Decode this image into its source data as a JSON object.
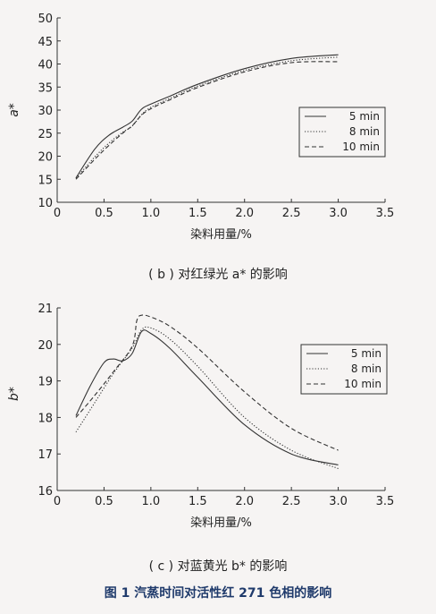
{
  "chart_data": [
    {
      "type": "line",
      "ylabel": "a*",
      "xlabel": "染料用量/%",
      "xlim": [
        0,
        3.5
      ],
      "ylim": [
        10,
        50
      ],
      "xticks": [
        "0",
        "0.5",
        "1.0",
        "1.5",
        "2.0",
        "2.5",
        "3.0",
        "3.5"
      ],
      "yticks": [
        "10",
        "15",
        "20",
        "25",
        "30",
        "35",
        "40",
        "45",
        "50"
      ],
      "legend_position": "right-middle",
      "series": [
        {
          "name": "5 min",
          "dash": "solid",
          "x": [
            0.2,
            0.4,
            0.55,
            0.7,
            0.8,
            0.9,
            1.0,
            1.2,
            1.5,
            2.0,
            2.5,
            3.0
          ],
          "y": [
            15.3,
            21.5,
            24.5,
            26.3,
            27.6,
            30.2,
            31.3,
            33.0,
            35.6,
            39.0,
            41.2,
            42.0
          ]
        },
        {
          "name": "8 min",
          "dash": "dotted",
          "x": [
            0.2,
            0.4,
            0.55,
            0.7,
            0.8,
            0.9,
            1.0,
            1.2,
            1.5,
            2.0,
            2.5,
            3.0
          ],
          "y": [
            15.2,
            19.8,
            22.8,
            25.2,
            26.5,
            29.0,
            30.6,
            32.5,
            35.2,
            38.6,
            40.7,
            41.5
          ]
        },
        {
          "name": "10 min",
          "dash": "dashed",
          "x": [
            0.2,
            0.4,
            0.55,
            0.7,
            0.8,
            0.9,
            1.0,
            1.2,
            1.5,
            2.0,
            2.5,
            3.0
          ],
          "y": [
            15.0,
            19.3,
            22.3,
            25.0,
            26.6,
            28.9,
            30.3,
            32.2,
            34.9,
            38.3,
            40.3,
            40.5
          ]
        }
      ]
    },
    {
      "type": "line",
      "ylabel": "b*",
      "xlabel": "染料用量/%",
      "xlim": [
        0,
        3.5
      ],
      "ylim": [
        16,
        21
      ],
      "xticks": [
        "0",
        "0.5",
        "1.0",
        "1.5",
        "2.0",
        "2.5",
        "3.0",
        "3.5"
      ],
      "yticks": [
        "16",
        "17",
        "18",
        "19",
        "20",
        "21"
      ],
      "legend_position": "right-middle",
      "series": [
        {
          "name": "5 min",
          "dash": "solid",
          "x": [
            0.2,
            0.35,
            0.5,
            0.6,
            0.7,
            0.8,
            0.9,
            1.0,
            1.2,
            1.5,
            2.0,
            2.5,
            3.0
          ],
          "y": [
            18.05,
            18.85,
            19.5,
            19.6,
            19.55,
            19.75,
            20.35,
            20.3,
            19.9,
            19.1,
            17.8,
            17.0,
            16.7
          ]
        },
        {
          "name": "8 min",
          "dash": "dotted",
          "x": [
            0.2,
            0.4,
            0.6,
            0.8,
            0.9,
            1.0,
            1.2,
            1.5,
            2.0,
            2.5,
            3.0
          ],
          "y": [
            17.6,
            18.4,
            19.2,
            19.9,
            20.4,
            20.45,
            20.15,
            19.4,
            18.0,
            17.1,
            16.6
          ]
        },
        {
          "name": "10 min",
          "dash": "dashed",
          "x": [
            0.2,
            0.4,
            0.6,
            0.8,
            0.85,
            0.9,
            1.0,
            1.2,
            1.5,
            2.0,
            2.5,
            3.0
          ],
          "y": [
            18.0,
            18.6,
            19.25,
            19.95,
            20.65,
            20.8,
            20.75,
            20.5,
            19.9,
            18.7,
            17.7,
            17.1
          ]
        }
      ]
    }
  ],
  "captions": {
    "b": "( b ) 对红绿光 a* 的影响",
    "c": "( c ) 对蓝黄光 b* 的影响",
    "figure": "图 1 汽蒸时间对活性红 271 色相的影响"
  },
  "colors": {
    "line": "#333333",
    "background": "#f6f4f3",
    "figure_title": "#1f3a6b"
  }
}
